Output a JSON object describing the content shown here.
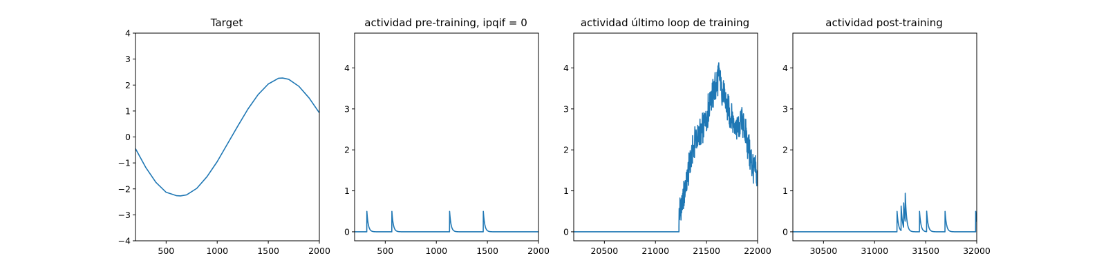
{
  "colors": {
    "line": "#1f77b4"
  },
  "chart_data": [
    {
      "type": "line",
      "title": "Target",
      "xlim": [
        200,
        2000
      ],
      "ylim": [
        -4,
        4
      ],
      "xticks": [
        500,
        1000,
        1500,
        2000
      ],
      "yticks": [
        -4,
        -3,
        -2,
        -1,
        0,
        1,
        2,
        3,
        4
      ],
      "x": [
        200,
        300,
        400,
        500,
        600,
        640,
        700,
        800,
        900,
        1000,
        1100,
        1200,
        1300,
        1400,
        1500,
        1600,
        1640,
        1700,
        1800,
        1900,
        2000
      ],
      "y": [
        -0.45,
        -1.17,
        -1.75,
        -2.13,
        -2.26,
        -2.27,
        -2.23,
        -1.98,
        -1.53,
        -0.95,
        -0.27,
        0.41,
        1.07,
        1.63,
        2.04,
        2.26,
        2.27,
        2.22,
        1.95,
        1.5,
        0.93
      ]
    },
    {
      "type": "line",
      "title": "actividad pre-training, ipqif = 0",
      "xlim": [
        200,
        2000
      ],
      "ylim": [
        -0.22,
        4.85
      ],
      "xticks": [
        500,
        1000,
        1500,
        2000
      ],
      "yticks": [
        0,
        1,
        2,
        3,
        4
      ],
      "baseline": 0,
      "spikes": [
        {
          "x": 320,
          "peak": 0.5
        },
        {
          "x": 565,
          "peak": 0.5
        },
        {
          "x": 1130,
          "peak": 0.5
        },
        {
          "x": 1460,
          "peak": 0.5
        }
      ]
    },
    {
      "type": "line",
      "title": "actividad último loop de training",
      "xlim": [
        20200,
        22000
      ],
      "ylim": [
        -0.22,
        4.85
      ],
      "xticks": [
        20500,
        21000,
        21500,
        22000
      ],
      "yticks": [
        0,
        1,
        2,
        3,
        4
      ],
      "baseline": 0,
      "onset": 21230,
      "x": [
        21230,
        21260,
        21300,
        21350,
        21400,
        21450,
        21500,
        21550,
        21600,
        21620,
        21650,
        21700,
        21750,
        21800,
        21850,
        21900,
        21950,
        22000
      ],
      "y": [
        0.4,
        0.7,
        1.2,
        1.8,
        2.3,
        2.5,
        2.8,
        3.3,
        3.6,
        3.85,
        3.5,
        3.0,
        2.8,
        2.5,
        2.7,
        2.2,
        1.6,
        1.3
      ],
      "noise_amplitude": 0.3
    },
    {
      "type": "line",
      "title": "actividad post-training",
      "xlim": [
        30200,
        32000
      ],
      "ylim": [
        -0.22,
        4.85
      ],
      "xticks": [
        30500,
        31000,
        31500,
        32000
      ],
      "yticks": [
        0,
        1,
        2,
        3,
        4
      ],
      "baseline": 0,
      "spikes": [
        {
          "x": 31220,
          "peak": 0.5
        },
        {
          "x": 31260,
          "peak": 0.6
        },
        {
          "x": 31285,
          "peak": 0.6
        },
        {
          "x": 31300,
          "peak": 0.7
        },
        {
          "x": 31440,
          "peak": 0.5
        },
        {
          "x": 31510,
          "peak": 0.5
        },
        {
          "x": 31690,
          "peak": 0.5
        },
        {
          "x": 31990,
          "peak": 0.5
        }
      ]
    }
  ]
}
